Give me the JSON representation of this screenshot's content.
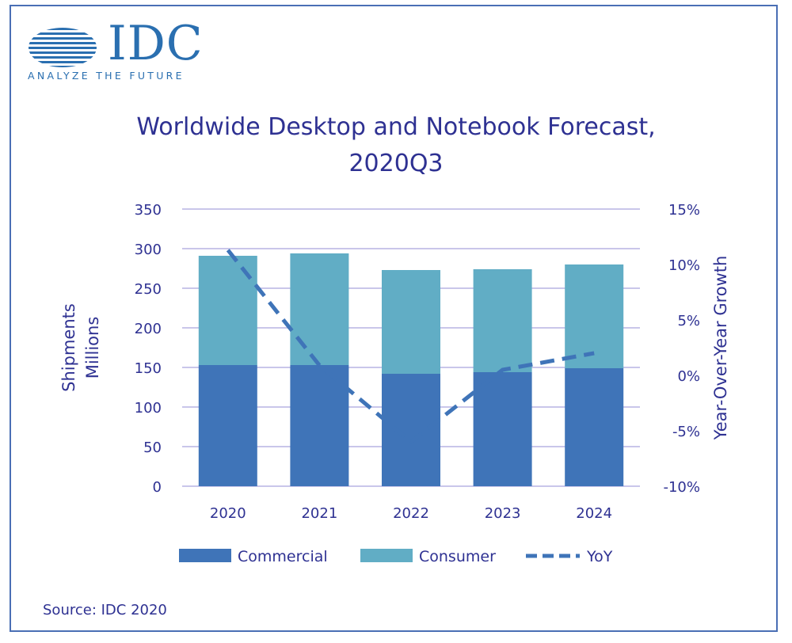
{
  "logo": {
    "wordmark": "IDC",
    "tagline": "ANALYZE THE FUTURE",
    "color": "#2a6fb0"
  },
  "source": "Source: IDC 2020",
  "colors": {
    "commercial": "#3f74b8",
    "consumer": "#61adc5",
    "yoy": "#3f74b8",
    "gridline": "#c9c6ea",
    "text": "#2e3192",
    "frame": "#4a6fb5"
  },
  "chart_data": {
    "type": "bar",
    "stacked": true,
    "title": "Worldwide Desktop and Notebook Forecast, 2020Q3",
    "title_lines": [
      "Worldwide Desktop and Notebook Forecast,",
      "2020Q3"
    ],
    "categories": [
      "2020",
      "2021",
      "2022",
      "2023",
      "2024"
    ],
    "ylabel_lines": [
      "Shipments",
      "Millions"
    ],
    "y2label": "Year-Over-Year Growth",
    "ylim": [
      0,
      350
    ],
    "yticks": [
      "0",
      "50",
      "100",
      "150",
      "200",
      "250",
      "300",
      "350"
    ],
    "y2lim": [
      -10,
      15
    ],
    "y2ticks": [
      "-10%",
      "-5%",
      "0%",
      "5%",
      "10%",
      "15%"
    ],
    "grid": true,
    "legend_position": "bottom",
    "series": [
      {
        "name": "Commercial",
        "type": "bar",
        "axis": "left",
        "values": [
          153,
          153,
          142,
          144,
          149
        ]
      },
      {
        "name": "Consumer",
        "type": "bar",
        "axis": "left",
        "values": [
          138,
          141,
          131,
          130,
          131
        ]
      },
      {
        "name": "YoY",
        "type": "line",
        "dash": true,
        "axis": "right",
        "values": [
          11.3,
          0.9,
          -6.0,
          0.5,
          2.0
        ]
      }
    ]
  }
}
